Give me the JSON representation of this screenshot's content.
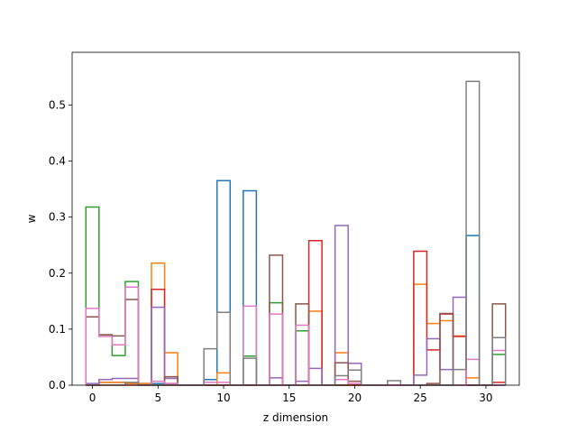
{
  "chart_data": {
    "type": "step-histogram",
    "xlabel": "z dimension",
    "ylabel": "w",
    "xlim": [
      -1.55,
      32.55
    ],
    "ylim": [
      0,
      0.594
    ],
    "xticks": [
      0,
      5,
      10,
      15,
      20,
      25,
      30
    ],
    "yticks": [
      0.0,
      0.1,
      0.2,
      0.3,
      0.4,
      0.5
    ],
    "grid": false,
    "legend": "none",
    "bins_x": [
      0,
      1,
      2,
      3,
      4,
      5,
      6,
      7,
      8,
      9,
      10,
      11,
      12,
      13,
      14,
      15,
      16,
      17,
      18,
      19,
      20,
      21,
      22,
      23,
      24,
      25,
      26,
      27,
      28,
      29,
      30,
      31
    ],
    "series": [
      {
        "color": "#1f77b4",
        "values": [
          0,
          0.005,
          0.005,
          0.003,
          0.003,
          0.003,
          0.003,
          0,
          0,
          0.01,
          0.365,
          0,
          0.347,
          0,
          0,
          0,
          0,
          0,
          0,
          0,
          0,
          0,
          0,
          0,
          0,
          0,
          0,
          0,
          0,
          0.267,
          0,
          0
        ]
      },
      {
        "color": "#ff7f0e",
        "values": [
          0,
          0.005,
          0.005,
          0.003,
          0.003,
          0.218,
          0.058,
          0,
          0,
          0,
          0.022,
          0,
          0,
          0,
          0,
          0,
          0,
          0.132,
          0,
          0.058,
          0,
          0,
          0,
          0,
          0,
          0.18,
          0.11,
          0.115,
          0.088,
          0.013,
          0,
          0
        ]
      },
      {
        "color": "#2ca02c",
        "values": [
          0.318,
          0.09,
          0.053,
          0.185,
          0,
          0,
          0,
          0,
          0,
          0,
          0,
          0,
          0.052,
          0,
          0.147,
          0,
          0.097,
          0,
          0,
          0,
          0,
          0,
          0,
          0,
          0,
          0,
          0,
          0,
          0,
          0,
          0,
          0.055
        ]
      },
      {
        "color": "#d62728",
        "values": [
          0,
          0,
          0,
          0,
          0,
          0.171,
          0,
          0,
          0,
          0,
          0,
          0,
          0,
          0,
          0,
          0,
          0,
          0.258,
          0,
          0,
          0,
          0,
          0,
          0,
          0,
          0.239,
          0.063,
          0.127,
          0.087,
          0,
          0,
          0.005
        ]
      },
      {
        "color": "#9467bd",
        "values": [
          0.003,
          0.01,
          0.012,
          0.012,
          0,
          0.139,
          0.012,
          0,
          0,
          0,
          0,
          0,
          0,
          0,
          0.013,
          0,
          0.007,
          0.03,
          0,
          0.285,
          0.039,
          0,
          0,
          0,
          0,
          0.018,
          0.083,
          0.028,
          0.157,
          0,
          0,
          0
        ]
      },
      {
        "color": "#8c564b",
        "values": [
          0.122,
          0.09,
          0.088,
          0.153,
          0,
          0,
          0.015,
          0,
          0,
          0,
          0,
          0,
          0,
          0,
          0.232,
          0,
          0.145,
          0,
          0,
          0.04,
          0.007,
          0,
          0,
          0,
          0,
          0,
          0.003,
          0.128,
          0,
          0,
          0,
          0.145
        ]
      },
      {
        "color": "#e377c2",
        "values": [
          0.137,
          0.087,
          0.072,
          0.175,
          0,
          0.007,
          0.003,
          0,
          0,
          0.005,
          0.005,
          0,
          0.141,
          0,
          0.127,
          0,
          0.107,
          0,
          0,
          0.01,
          0.003,
          0,
          0,
          0,
          0,
          0,
          0,
          0,
          0,
          0.046,
          0,
          0.062
        ]
      },
      {
        "color": "#7f7f7f",
        "values": [
          0,
          0,
          0,
          0.005,
          0,
          0,
          0,
          0,
          0,
          0.065,
          0.13,
          0,
          0.048,
          0,
          0,
          0,
          0,
          0,
          0,
          0.017,
          0.027,
          0,
          0,
          0.008,
          0,
          0,
          0,
          0,
          0.028,
          0.542,
          0,
          0.085
        ]
      }
    ]
  }
}
